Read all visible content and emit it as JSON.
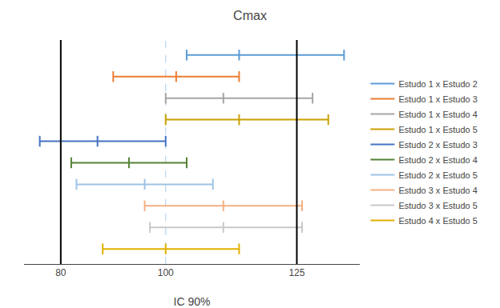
{
  "chart_data": {
    "type": "interval",
    "title": "Cmax",
    "xlabel": "IC 90%",
    "xlim": [
      73,
      137
    ],
    "xticks": [
      80,
      100,
      125
    ],
    "tick_labels": "x",
    "grid": false,
    "legend": "right",
    "ref_lines": [
      {
        "value": 100,
        "color": "#AACCEE",
        "line_style": "dashed"
      },
      {
        "value": 80,
        "color": "#000000",
        "line_style": "solid"
      },
      {
        "value": 125,
        "color": "#000000",
        "line_style": "solid"
      }
    ],
    "series": [
      {
        "name": "Estudo 1 x Estudo 2",
        "color": "#5B9BD5",
        "low": 104,
        "mid": 114,
        "high": 134
      },
      {
        "name": "Estudo 1 x Estudo 3",
        "color": "#ED7D31",
        "low": 90,
        "mid": 102,
        "high": 114
      },
      {
        "name": "Estudo 1 x Estudo 4",
        "color": "#A5A5A5",
        "low": 100,
        "mid": 111,
        "high": 128
      },
      {
        "name": "Estudo 1 x Estudo 5",
        "color": "#C9A000",
        "low": 100,
        "mid": 114,
        "high": 131
      },
      {
        "name": "Estudo 2 x Estudo 3",
        "color": "#4472C4",
        "low": 76,
        "mid": 87,
        "high": 100
      },
      {
        "name": "Estudo 2 x Estudo 4",
        "color": "#548235",
        "low": 82,
        "mid": 93,
        "high": 104
      },
      {
        "name": "Estudo 2 x Estudo 5",
        "color": "#9DC3E6",
        "low": 83,
        "mid": 96,
        "high": 109
      },
      {
        "name": "Estudo 3 x Estudo 4",
        "color": "#F4B183",
        "low": 96,
        "mid": 111,
        "high": 126
      },
      {
        "name": "Estudo 3 x Estudo 5",
        "color": "#C9C9C9",
        "low": 97,
        "mid": 111,
        "high": 126
      },
      {
        "name": "Estudo 4 x Estudo 5",
        "color": "#E2B000",
        "low": 88,
        "mid": 100,
        "high": 114
      }
    ]
  }
}
